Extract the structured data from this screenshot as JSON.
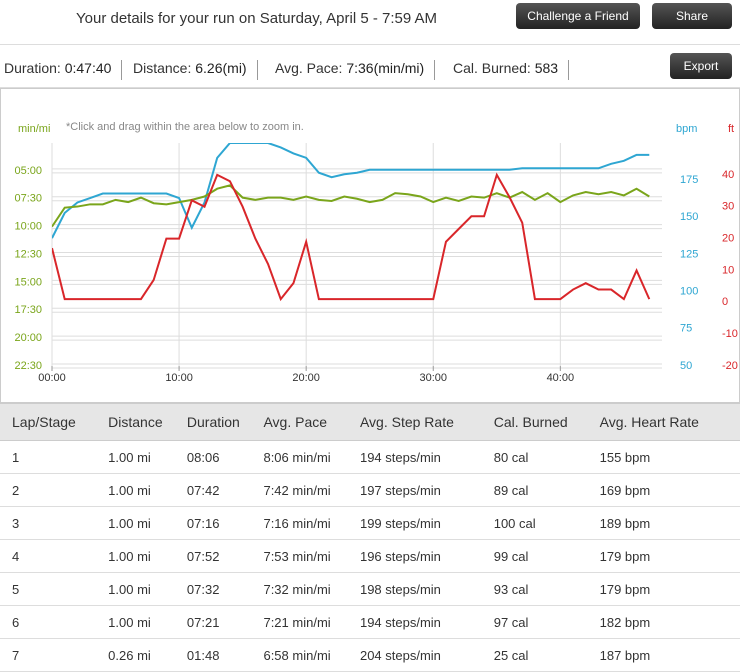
{
  "header": {
    "title": "Your details for your run on Saturday, April 5 - 7:59 AM",
    "buttons": [
      "Challenge a Friend",
      "Share"
    ]
  },
  "summary": {
    "items": [
      {
        "label": "Duration:",
        "value": "0:47:40"
      },
      {
        "label": "Distance:",
        "value": "6.26(mi)"
      },
      {
        "label": "Avg. Pace:",
        "value": "7:36(min/mi)"
      },
      {
        "label": "Cal. Burned:",
        "value": "583"
      }
    ],
    "export": "Export"
  },
  "chart": {
    "type": "line",
    "note": "*Click and drag within the area below to zoom in.",
    "x": [
      0,
      1,
      2,
      3,
      4,
      5,
      6,
      7,
      8,
      9,
      10,
      11,
      12,
      13,
      14,
      15,
      16,
      17,
      18,
      19,
      20,
      21,
      22,
      23,
      24,
      25,
      26,
      27,
      28,
      29,
      30,
      31,
      32,
      33,
      34,
      35,
      36,
      37,
      38,
      39,
      40,
      41,
      42,
      43,
      44,
      45,
      46,
      47
    ],
    "xlim": [
      0,
      48
    ],
    "xticks": [
      {
        "value": 0,
        "label": "00:00"
      },
      {
        "value": 10,
        "label": "10:00"
      },
      {
        "value": 20,
        "label": "20:00"
      },
      {
        "value": 30,
        "label": "30:00"
      },
      {
        "value": 40,
        "label": "40:00"
      }
    ],
    "axes": [
      {
        "id": "pace",
        "label": "min/mi",
        "side": "left",
        "color": "#7aa51b",
        "lim": [
          22.5,
          2.5
        ],
        "ticks": [
          {
            "value": 5,
            "label": "05:00"
          },
          {
            "value": 7.5,
            "label": "07:30"
          },
          {
            "value": 10,
            "label": "10:00"
          },
          {
            "value": 12.5,
            "label": "12:30"
          },
          {
            "value": 15,
            "label": "15:00"
          },
          {
            "value": 17.5,
            "label": "17:30"
          },
          {
            "value": 20,
            "label": "20:00"
          },
          {
            "value": 22.5,
            "label": "22:30"
          }
        ]
      },
      {
        "id": "bpm",
        "label": "bpm",
        "side": "right",
        "color": "#2ea6d2",
        "lim": [
          50,
          200
        ],
        "ticks": [
          50,
          75,
          100,
          125,
          150,
          175
        ]
      },
      {
        "id": "ft",
        "label": "ft",
        "side": "right2",
        "color": "#d9262a",
        "lim": [
          -20,
          50
        ],
        "ticks": [
          -20,
          -10,
          0,
          10,
          20,
          30,
          40
        ]
      }
    ],
    "series": [
      {
        "axis": 0,
        "color": "#2ea6d2",
        "values": [
          136,
          153,
          160,
          163,
          166,
          166,
          166,
          166,
          166,
          166,
          163,
          143,
          160,
          190,
          200,
          200,
          200,
          200,
          197,
          193,
          190,
          180,
          177,
          179,
          180,
          182,
          182,
          182,
          182,
          182,
          182,
          182,
          182,
          182,
          182,
          182,
          182,
          183,
          183,
          183,
          183,
          183,
          183,
          183,
          186,
          188,
          192,
          192
        ]
      },
      {
        "axis": 0,
        "color": "#7aa51b",
        "values": [
          10,
          8.3,
          8.2,
          8,
          8,
          7.6,
          7.8,
          7.4,
          7.9,
          8,
          7.8,
          7.6,
          7.3,
          6.6,
          6.3,
          7.4,
          7.6,
          7.4,
          7.4,
          7.6,
          7.3,
          7.6,
          7.7,
          7.3,
          7.5,
          7.8,
          7.6,
          7,
          7.1,
          7.3,
          7.8,
          7.4,
          7.7,
          7.3,
          7.4,
          7,
          7.4,
          6.9,
          7.6,
          7,
          7.8,
          7.2,
          6.9,
          7.1,
          6.9,
          7.2,
          6.6,
          7.3
        ]
      },
      {
        "axis": 0,
        "color": "#d9262a",
        "values": [
          17,
          1,
          1,
          1,
          1,
          1,
          1,
          1,
          7,
          20,
          20,
          32,
          30,
          40,
          38,
          30,
          20,
          12,
          1,
          6,
          19,
          1,
          1,
          1,
          1,
          1,
          1,
          1,
          1,
          1,
          1,
          19,
          23,
          27,
          27,
          40,
          33,
          25,
          1,
          1,
          1,
          4,
          6,
          4,
          4,
          1,
          10,
          1
        ]
      }
    ]
  },
  "table": {
    "columns": [
      "Lap/Stage",
      "Distance",
      "Duration",
      "Avg. Pace",
      "Avg. Step Rate",
      "Cal. Burned",
      "Avg. Heart Rate"
    ],
    "rows": [
      [
        "1",
        "1.00 mi",
        "08:06",
        "8:06 min/mi",
        "194 steps/min",
        "80 cal",
        "155 bpm"
      ],
      [
        "2",
        "1.00 mi",
        "07:42",
        "7:42 min/mi",
        "197 steps/min",
        "89 cal",
        "169 bpm"
      ],
      [
        "3",
        "1.00 mi",
        "07:16",
        "7:16 min/mi",
        "199 steps/min",
        "100 cal",
        "189 bpm"
      ],
      [
        "4",
        "1.00 mi",
        "07:52",
        "7:53 min/mi",
        "196 steps/min",
        "99 cal",
        "179 bpm"
      ],
      [
        "5",
        "1.00 mi",
        "07:32",
        "7:32 min/mi",
        "198 steps/min",
        "93 cal",
        "179 bpm"
      ],
      [
        "6",
        "1.00 mi",
        "07:21",
        "7:21 min/mi",
        "194 steps/min",
        "97 cal",
        "182 bpm"
      ],
      [
        "7",
        "0.26 mi",
        "01:48",
        "6:58 min/mi",
        "204 steps/min",
        "25 cal",
        "187 bpm"
      ]
    ]
  }
}
